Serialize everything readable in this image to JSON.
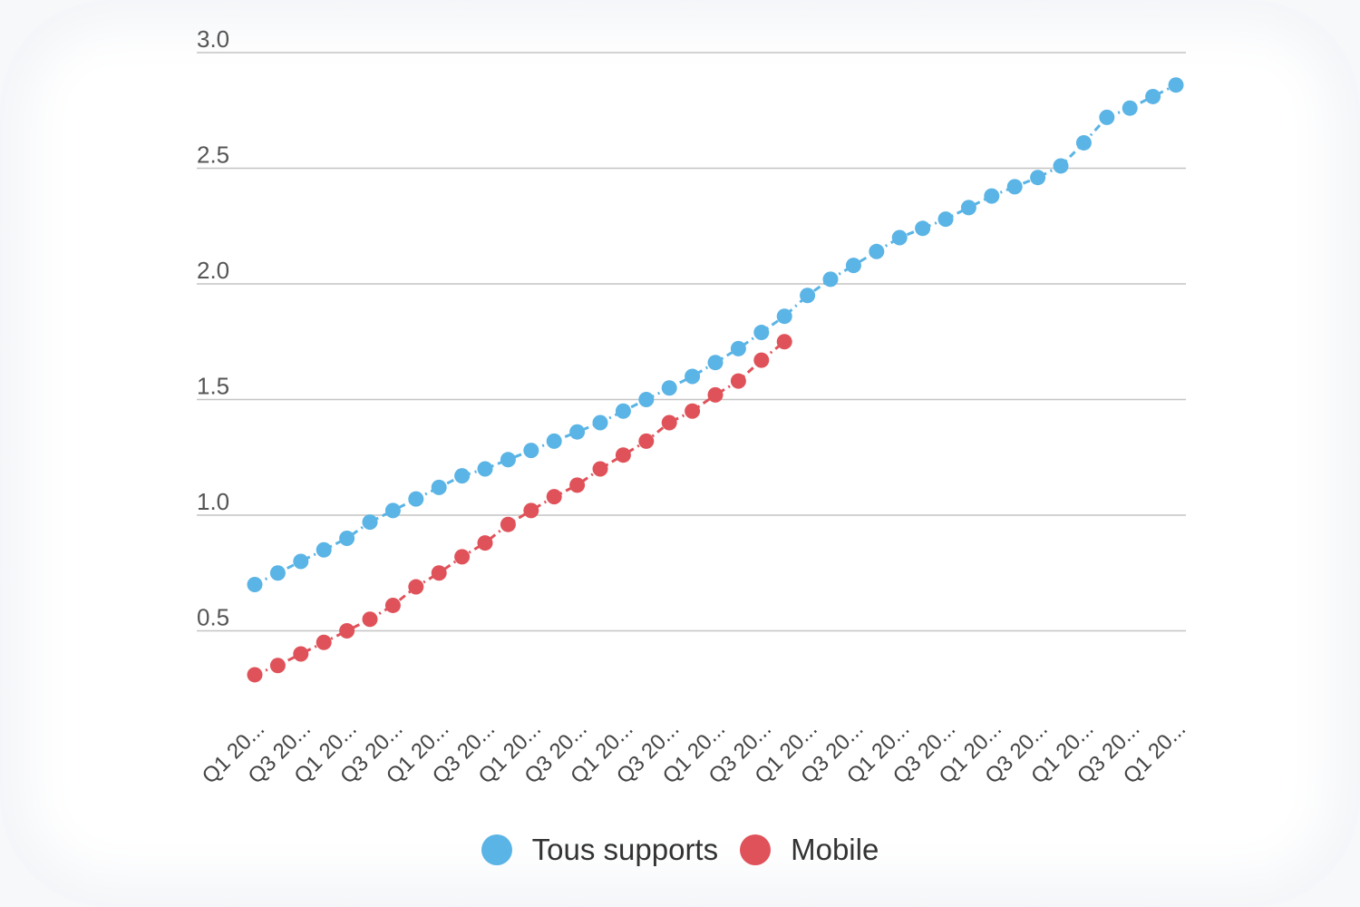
{
  "chart_data": {
    "type": "line",
    "line_style": "dash-dot",
    "yticks": [
      "3.0",
      "2.5",
      "2.0",
      "1.5",
      "1.0",
      "0.5"
    ],
    "ytick_values": [
      3.0,
      2.5,
      2.0,
      1.5,
      1.0,
      0.5
    ],
    "ylim": [
      0,
      3.0
    ],
    "x_tick_labels": [
      "Q1 20...",
      "Q3 20...",
      "Q1 20...",
      "Q3 20...",
      "Q1 20...",
      "Q3 20...",
      "Q1 20...",
      "Q3 20...",
      "Q1 20...",
      "Q3 20...",
      "Q1 20...",
      "Q3 20...",
      "Q1 20...",
      "Q3 20...",
      "Q1 20...",
      "Q3 20...",
      "Q1 20...",
      "Q3 20...",
      "Q1 20...",
      "Q3 20...",
      "Q1 20..."
    ],
    "n_points": 41,
    "grid": true,
    "legend_position": "bottom-center",
    "series": [
      {
        "name": "Tous supports",
        "color": "#5ab4e5",
        "values": [
          0.7,
          0.75,
          0.8,
          0.85,
          0.9,
          0.97,
          1.02,
          1.07,
          1.12,
          1.17,
          1.2,
          1.24,
          1.28,
          1.32,
          1.36,
          1.4,
          1.45,
          1.5,
          1.55,
          1.6,
          1.66,
          1.72,
          1.79,
          1.86,
          1.95,
          2.02,
          2.08,
          2.14,
          2.2,
          2.24,
          2.28,
          2.33,
          2.38,
          2.42,
          2.46,
          2.51,
          2.61,
          2.72,
          2.76,
          2.81,
          2.86
        ]
      },
      {
        "name": "Mobile",
        "color": "#e0525a",
        "values": [
          0.31,
          0.35,
          0.4,
          0.45,
          0.5,
          0.55,
          0.61,
          0.69,
          0.75,
          0.82,
          0.88,
          0.96,
          1.02,
          1.08,
          1.13,
          1.2,
          1.26,
          1.32,
          1.4,
          1.45,
          1.52,
          1.58,
          1.67,
          1.75
        ]
      }
    ]
  }
}
